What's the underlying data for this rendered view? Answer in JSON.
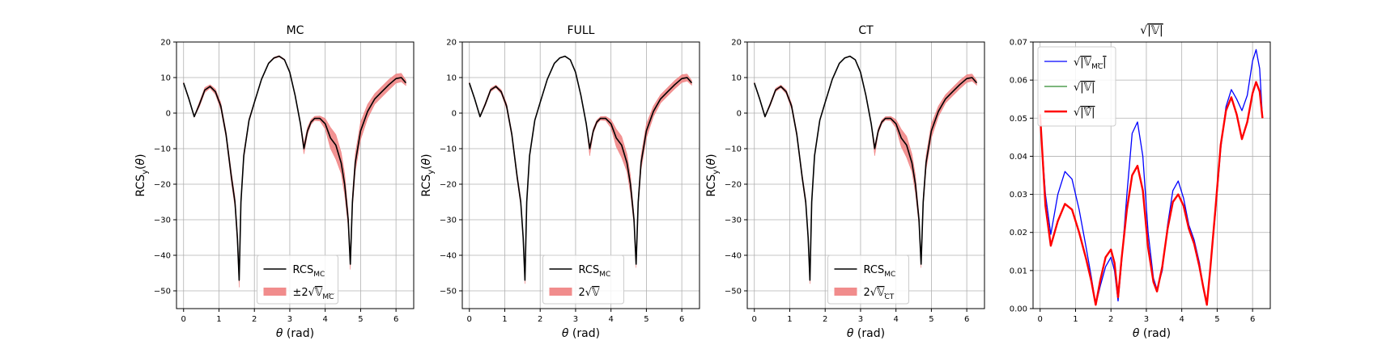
{
  "figure": {
    "background": "#ffffff"
  },
  "chart_data": [
    {
      "id": "mc",
      "type": "line",
      "title": "MC",
      "xlabel": "θ (rad)",
      "ylabel": "RCS_y(θ)",
      "xlim": [
        -0.2,
        6.5
      ],
      "ylim": [
        -55,
        20
      ],
      "xticks": [
        0,
        1,
        2,
        3,
        4,
        5,
        6
      ],
      "yticks": [
        -50,
        -40,
        -30,
        -20,
        -10,
        0,
        10,
        20
      ],
      "grid": true,
      "legend_position": "lower-center",
      "x": [
        0,
        0.15,
        0.3,
        0.45,
        0.6,
        0.75,
        0.9,
        1.05,
        1.2,
        1.35,
        1.45,
        1.52,
        1.57,
        1.62,
        1.7,
        1.85,
        2.0,
        2.2,
        2.4,
        2.55,
        2.7,
        2.85,
        3.0,
        3.15,
        3.3,
        3.4,
        3.5,
        3.6,
        3.7,
        3.85,
        4.0,
        4.15,
        4.3,
        4.45,
        4.55,
        4.65,
        4.71,
        4.77,
        4.85,
        5.0,
        5.2,
        5.4,
        5.6,
        5.8,
        6.0,
        6.15,
        6.28
      ],
      "series": [
        {
          "name": "RCS_MC",
          "color": "#000000",
          "values": [
            8.5,
            4,
            -1,
            2.5,
            6.5,
            7.5,
            6,
            2,
            -6,
            -18,
            -25,
            -35,
            -47,
            -25,
            -12,
            -2,
            3,
            9.5,
            14,
            15.5,
            16,
            15,
            11.5,
            5,
            -3,
            -10,
            -5,
            -2.5,
            -1.5,
            -1.5,
            -3,
            -7,
            -9,
            -14,
            -20,
            -30,
            -42.5,
            -25,
            -14,
            -5,
            0.5,
            4,
            6,
            8,
            9.7,
            10,
            8.5
          ]
        }
      ],
      "band": {
        "name": "±2√V_MC",
        "color": "#f08080",
        "upper": [
          8.7,
          4.3,
          -0.8,
          3.2,
          7.2,
          8.0,
          6.8,
          3.0,
          -5.0,
          -16.5,
          -23.5,
          -33,
          -45,
          -24,
          -11,
          -1.5,
          3.3,
          9.7,
          14.2,
          15.7,
          16.2,
          15.2,
          11.8,
          5.3,
          -2.5,
          -8.5,
          -4.0,
          -1.8,
          -0.9,
          -0.8,
          -1.5,
          -4.0,
          -6.0,
          -11.0,
          -17.0,
          -28,
          -41,
          -23,
          -11.5,
          -2.5,
          2.5,
          5.5,
          7.5,
          9.5,
          11.0,
          11.2,
          9.3
        ],
        "lower": [
          8.3,
          3.7,
          -1.2,
          1.8,
          5.8,
          7.0,
          5.2,
          1.0,
          -7.0,
          -19.5,
          -26.5,
          -37,
          -49,
          -26,
          -13,
          -2.5,
          2.7,
          9.3,
          13.8,
          15.3,
          15.8,
          14.8,
          11.2,
          4.7,
          -3.5,
          -11.5,
          -6.0,
          -3.2,
          -2.1,
          -2.2,
          -4.5,
          -10.0,
          -13.0,
          -17.0,
          -23.0,
          -32,
          -44,
          -27,
          -16.5,
          -7.5,
          -1.5,
          2.5,
          4.5,
          6.5,
          8.4,
          8.8,
          7.7
        ]
      },
      "legend": [
        {
          "label": "RCS",
          "sub": "MC",
          "kind": "line"
        },
        {
          "label": "±2√",
          "sub_rad": "𝕍",
          "sub_idx": "MC",
          "kind": "patch"
        }
      ]
    },
    {
      "id": "full",
      "type": "line",
      "title": "FULL",
      "xlabel": "θ (rad)",
      "ylabel": "RCS_y(θ)",
      "xlim": [
        -0.2,
        6.5
      ],
      "ylim": [
        -55,
        20
      ],
      "xticks": [
        0,
        1,
        2,
        3,
        4,
        5,
        6
      ],
      "yticks": [
        -50,
        -40,
        -30,
        -20,
        -10,
        0,
        10,
        20
      ],
      "grid": true,
      "legend_position": "lower-center",
      "x": [
        0,
        0.15,
        0.3,
        0.45,
        0.6,
        0.75,
        0.9,
        1.05,
        1.2,
        1.35,
        1.45,
        1.52,
        1.57,
        1.62,
        1.7,
        1.85,
        2.0,
        2.2,
        2.4,
        2.55,
        2.7,
        2.85,
        3.0,
        3.15,
        3.3,
        3.4,
        3.5,
        3.6,
        3.7,
        3.85,
        4.0,
        4.15,
        4.3,
        4.45,
        4.55,
        4.65,
        4.71,
        4.77,
        4.85,
        5.0,
        5.2,
        5.4,
        5.6,
        5.8,
        6.0,
        6.15,
        6.28
      ],
      "series": [
        {
          "name": "RCS_MC",
          "color": "#000000",
          "values": [
            8.5,
            4,
            -1,
            2.5,
            6.5,
            7.5,
            6,
            2,
            -6,
            -18,
            -25,
            -35,
            -47,
            -25,
            -12,
            -2,
            3,
            9.5,
            14,
            15.5,
            16,
            15,
            11.5,
            5,
            -3,
            -10,
            -5,
            -2.5,
            -1.5,
            -1.5,
            -3,
            -7,
            -9,
            -14,
            -20,
            -30,
            -42.5,
            -25,
            -14,
            -5,
            0.5,
            4,
            6,
            8,
            9.7,
            10,
            8.5
          ]
        }
      ],
      "band": {
        "name": "2√V",
        "color": "#f08080",
        "upper": [
          8.7,
          4.2,
          -0.8,
          3.0,
          7.0,
          7.9,
          6.6,
          2.8,
          -5.2,
          -17,
          -24,
          -34,
          -46,
          -24.5,
          -11.5,
          -1.7,
          3.2,
          9.6,
          14.1,
          15.6,
          16.1,
          15.1,
          11.7,
          5.2,
          -2.7,
          -9,
          -4.3,
          -1.9,
          -1.0,
          -0.9,
          -1.8,
          -4.5,
          -6.5,
          -11.5,
          -17.5,
          -28.5,
          -41.5,
          -23.5,
          -12.0,
          -3.0,
          2.0,
          5.2,
          7.2,
          9.2,
          10.8,
          11.0,
          9.2
        ],
        "lower": [
          8.3,
          3.8,
          -1.2,
          2.0,
          6.0,
          7.1,
          5.4,
          1.2,
          -6.8,
          -19,
          -26,
          -36,
          -48,
          -25.5,
          -12.5,
          -2.3,
          2.8,
          9.4,
          13.9,
          15.4,
          15.9,
          14.9,
          11.3,
          4.8,
          -3.3,
          -12,
          -5.7,
          -3.1,
          -2.0,
          -2.1,
          -4.2,
          -9.5,
          -12.5,
          -16.5,
          -22.5,
          -31.5,
          -43.5,
          -26.5,
          -16.0,
          -7.0,
          -1.0,
          2.8,
          4.8,
          6.8,
          8.6,
          9.0,
          7.8
        ]
      },
      "legend": [
        {
          "label": "RCS",
          "sub": "MC",
          "kind": "line"
        },
        {
          "label": "2√",
          "sub_rad": "𝕍",
          "sub_idx": "",
          "kind": "patch"
        }
      ]
    },
    {
      "id": "ct",
      "type": "line",
      "title": "CT",
      "xlabel": "θ (rad)",
      "ylabel": "RCS_y(θ)",
      "xlim": [
        -0.2,
        6.5
      ],
      "ylim": [
        -55,
        20
      ],
      "xticks": [
        0,
        1,
        2,
        3,
        4,
        5,
        6
      ],
      "yticks": [
        -50,
        -40,
        -30,
        -20,
        -10,
        0,
        10,
        20
      ],
      "grid": true,
      "legend_position": "lower-center",
      "x": [
        0,
        0.15,
        0.3,
        0.45,
        0.6,
        0.75,
        0.9,
        1.05,
        1.2,
        1.35,
        1.45,
        1.52,
        1.57,
        1.62,
        1.7,
        1.85,
        2.0,
        2.2,
        2.4,
        2.55,
        2.7,
        2.85,
        3.0,
        3.15,
        3.3,
        3.4,
        3.5,
        3.6,
        3.7,
        3.85,
        4.0,
        4.15,
        4.3,
        4.45,
        4.55,
        4.65,
        4.71,
        4.77,
        4.85,
        5.0,
        5.2,
        5.4,
        5.6,
        5.8,
        6.0,
        6.15,
        6.28
      ],
      "series": [
        {
          "name": "RCS_MC",
          "color": "#000000",
          "values": [
            8.5,
            4,
            -1,
            2.5,
            6.5,
            7.5,
            6,
            2,
            -6,
            -18,
            -25,
            -35,
            -47,
            -25,
            -12,
            -2,
            3,
            9.5,
            14,
            15.5,
            16,
            15,
            11.5,
            5,
            -3,
            -10,
            -5,
            -2.5,
            -1.5,
            -1.5,
            -3,
            -7,
            -9,
            -14,
            -20,
            -30,
            -42.5,
            -25,
            -14,
            -5,
            0.5,
            4,
            6,
            8,
            9.7,
            10,
            8.5
          ]
        }
      ],
      "band": {
        "name": "2√V_CT",
        "color": "#f08080",
        "upper": [
          8.7,
          4.2,
          -0.8,
          3.0,
          7.0,
          7.9,
          6.6,
          2.8,
          -5.2,
          -17,
          -24,
          -34,
          -46,
          -24.5,
          -11.5,
          -1.7,
          3.2,
          9.6,
          14.1,
          15.6,
          16.1,
          15.1,
          11.7,
          5.2,
          -2.7,
          -9,
          -4.3,
          -1.9,
          -1.0,
          -0.9,
          -1.8,
          -4.5,
          -6.5,
          -11.5,
          -17.5,
          -28.5,
          -41.5,
          -23.5,
          -12.0,
          -3.0,
          2.0,
          5.2,
          7.2,
          9.2,
          10.8,
          11.0,
          9.2
        ],
        "lower": [
          8.3,
          3.8,
          -1.2,
          2.0,
          6.0,
          7.1,
          5.4,
          1.2,
          -6.8,
          -19,
          -26,
          -36,
          -48,
          -25.5,
          -12.5,
          -2.3,
          2.8,
          9.4,
          13.9,
          15.4,
          15.9,
          14.9,
          11.3,
          4.8,
          -3.3,
          -12,
          -5.7,
          -3.1,
          -2.0,
          -2.1,
          -4.2,
          -9.5,
          -12.5,
          -16.5,
          -22.5,
          -31.5,
          -43.5,
          -26.5,
          -16.0,
          -7.0,
          -1.0,
          2.8,
          4.8,
          6.8,
          8.6,
          9.0,
          7.8
        ]
      },
      "legend": [
        {
          "label": "RCS",
          "sub": "MC",
          "kind": "line"
        },
        {
          "label": "2√",
          "sub_rad": "𝕍",
          "sub_idx": "CT",
          "kind": "patch"
        }
      ]
    },
    {
      "id": "sqrtv",
      "type": "line",
      "title": "√|𝕍|",
      "xlabel": "θ (rad)",
      "ylabel": "",
      "xlim": [
        -0.2,
        6.5
      ],
      "ylim": [
        0,
        0.07
      ],
      "xticks": [
        0,
        1,
        2,
        3,
        4,
        5,
        6
      ],
      "yticks": [
        0.0,
        0.01,
        0.02,
        0.03,
        0.04,
        0.05,
        0.06,
        0.07
      ],
      "ytick_decimals": 2,
      "grid": true,
      "legend_position": "top-left",
      "x": [
        0,
        0.15,
        0.3,
        0.5,
        0.7,
        0.9,
        1.1,
        1.3,
        1.45,
        1.57,
        1.7,
        1.85,
        2.0,
        2.1,
        2.2,
        2.3,
        2.45,
        2.6,
        2.75,
        2.9,
        3.05,
        3.2,
        3.3,
        3.45,
        3.6,
        3.75,
        3.9,
        4.05,
        4.2,
        4.35,
        4.5,
        4.6,
        4.71,
        4.8,
        4.95,
        5.1,
        5.25,
        5.4,
        5.55,
        5.7,
        5.85,
        6.0,
        6.1,
        6.2,
        6.28
      ],
      "series": [
        {
          "name": "√|V_MC|",
          "color": "#0000ff",
          "width": 1.3,
          "values": [
            0.05,
            0.03,
            0.0195,
            0.03,
            0.036,
            0.034,
            0.026,
            0.016,
            0.008,
            0.001,
            0.006,
            0.011,
            0.0135,
            0.01,
            0.002,
            0.012,
            0.03,
            0.046,
            0.049,
            0.04,
            0.02,
            0.008,
            0.005,
            0.01,
            0.022,
            0.031,
            0.0335,
            0.029,
            0.022,
            0.018,
            0.012,
            0.006,
            0.001,
            0.01,
            0.025,
            0.042,
            0.053,
            0.0575,
            0.055,
            0.052,
            0.056,
            0.065,
            0.068,
            0.063,
            0.05
          ]
        },
        {
          "name": "√|V|",
          "color": "#2e8b2e",
          "width": 1.3,
          "values": [
            0.051,
            0.027,
            0.0165,
            0.023,
            0.0275,
            0.026,
            0.02,
            0.013,
            0.007,
            0.001,
            0.0075,
            0.0135,
            0.0155,
            0.012,
            0.003,
            0.013,
            0.026,
            0.035,
            0.0375,
            0.031,
            0.016,
            0.007,
            0.0045,
            0.011,
            0.021,
            0.028,
            0.03,
            0.027,
            0.021,
            0.017,
            0.011,
            0.006,
            0.001,
            0.01,
            0.026,
            0.043,
            0.052,
            0.0555,
            0.051,
            0.0445,
            0.049,
            0.0565,
            0.0595,
            0.057,
            0.05
          ]
        },
        {
          "name": "√|V̂|",
          "color": "#ff0000",
          "width": 2.4,
          "values": [
            0.051,
            0.027,
            0.0165,
            0.023,
            0.0275,
            0.026,
            0.02,
            0.013,
            0.007,
            0.001,
            0.0075,
            0.0135,
            0.0155,
            0.012,
            0.003,
            0.013,
            0.026,
            0.035,
            0.0375,
            0.031,
            0.016,
            0.007,
            0.0045,
            0.011,
            0.021,
            0.028,
            0.03,
            0.027,
            0.021,
            0.017,
            0.011,
            0.006,
            0.001,
            0.01,
            0.026,
            0.043,
            0.052,
            0.0555,
            0.051,
            0.0445,
            0.049,
            0.0565,
            0.0595,
            0.057,
            0.05
          ]
        }
      ],
      "legend": [
        {
          "label": "√",
          "rad": "|𝕍",
          "sub": "MC",
          "close": "|",
          "kind": "line",
          "color": "#0000ff"
        },
        {
          "label": "√",
          "rad": "|𝕍|",
          "sub": "",
          "close": "",
          "kind": "line",
          "color": "#2e8b2e"
        },
        {
          "label": "√",
          "rad": "|𝕍̂|",
          "sub": "",
          "close": "",
          "kind": "line",
          "color": "#ff0000"
        }
      ]
    }
  ]
}
